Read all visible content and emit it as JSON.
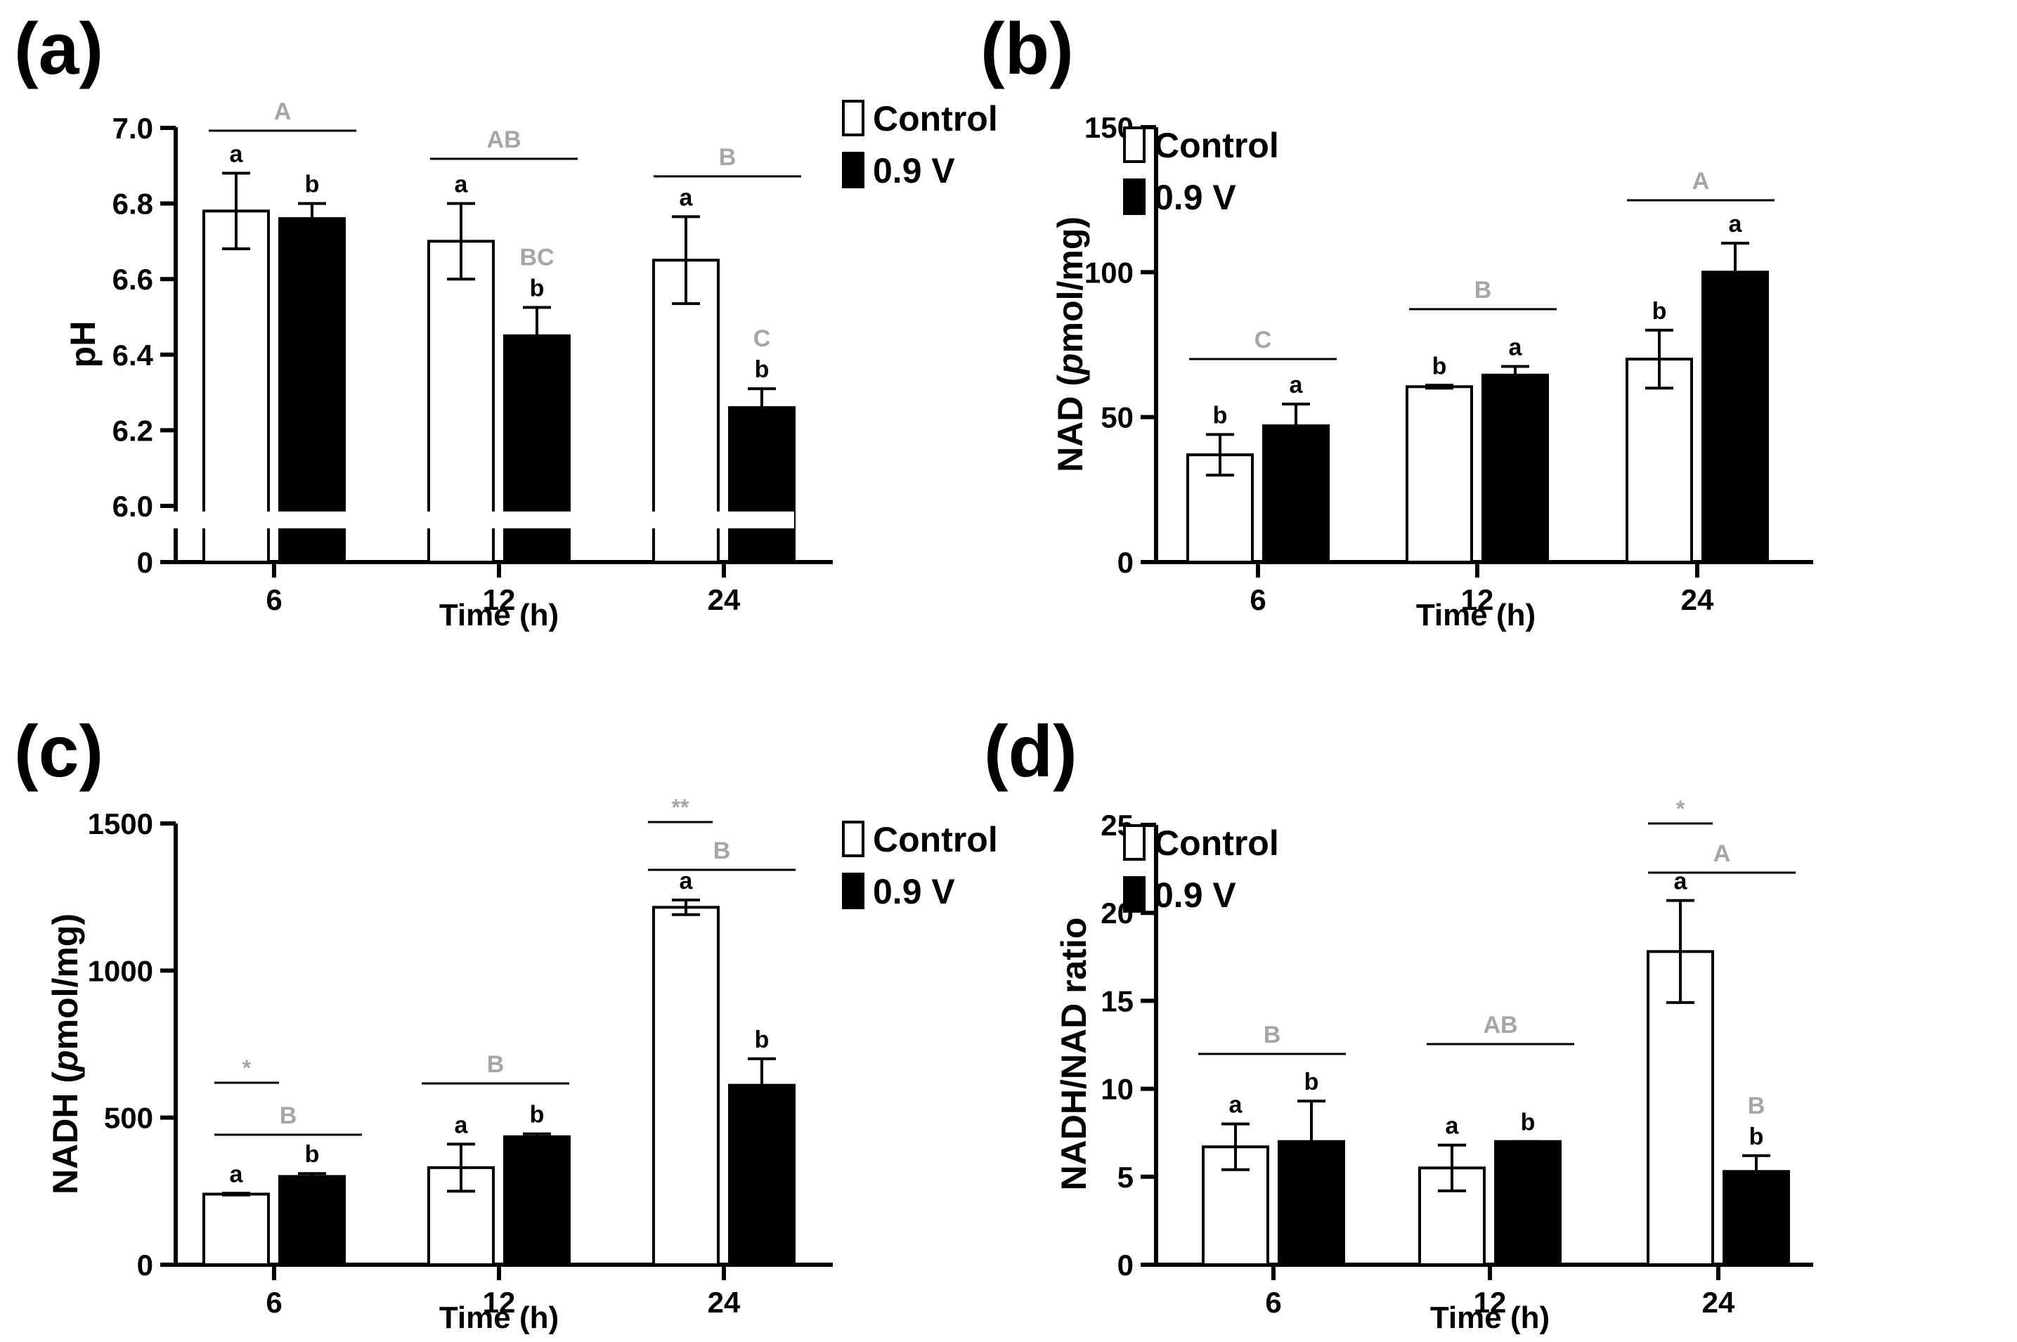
{
  "figure": {
    "panels": [
      {
        "panel_label": "(a)",
        "legend": {
          "items": [
            "Control",
            "0.9 V"
          ],
          "position": "top-right"
        },
        "chart_data": {
          "type": "bar",
          "xlabel": "Time (h)",
          "ylabel": "pH",
          "categories": [
            "6",
            "12",
            "24"
          ],
          "ylim": [
            6.0,
            7.0
          ],
          "yticks": [
            "7.0",
            "6.8",
            "6.6",
            "6.4",
            "6.2",
            "6.0",
            "0"
          ],
          "axis_break": true,
          "grid": false,
          "series": [
            {
              "name": "Control",
              "color": "#ffffff",
              "values": [
                6.78,
                6.7,
                6.65
              ],
              "errors": [
                0.1,
                0.1,
                0.115
              ],
              "labels": [
                "a",
                "a",
                "a"
              ]
            },
            {
              "name": "0.9 V",
              "color": "#000000",
              "values": [
                6.76,
                6.45,
                6.26
              ],
              "errors": [
                0.04,
                0.075,
                0.05
              ],
              "labels": [
                "b",
                "b",
                "b"
              ],
              "upper_labels": [
                "",
                "BC",
                "C"
              ]
            }
          ],
          "group_letters": [
            "A",
            "AB",
            "B"
          ]
        }
      },
      {
        "panel_label": "(b)",
        "legend": {
          "items": [
            "Control",
            "0.9 V"
          ],
          "position": "top-right"
        },
        "chart_data": {
          "type": "bar",
          "xlabel": "Time (h)",
          "ylabel_parts": [
            "NAD (",
            "p",
            "mol/mg)"
          ],
          "categories": [
            "6",
            "12",
            "24"
          ],
          "ylim": [
            0,
            150
          ],
          "yticks": [
            "0",
            "50",
            "100",
            "150"
          ],
          "grid": false,
          "series": [
            {
              "name": "Control",
              "color": "#ffffff",
              "values": [
                37,
                60.5,
                70
              ],
              "errors": [
                7,
                0.5,
                10
              ],
              "labels": [
                "b",
                "b",
                "b"
              ]
            },
            {
              "name": "0.9 V",
              "color": "#000000",
              "values": [
                47,
                64.5,
                100
              ],
              "errors": [
                7.5,
                3,
                10
              ],
              "labels": [
                "a",
                "a",
                "a"
              ]
            }
          ],
          "group_letters": [
            "C",
            "B",
            "A"
          ]
        }
      },
      {
        "panel_label": "(c)",
        "legend": {
          "items": [
            "Control",
            "0.9 V"
          ],
          "position": "top-right"
        },
        "chart_data": {
          "type": "bar",
          "xlabel": "Time (h)",
          "ylabel_parts": [
            "NADH (",
            "p",
            "mol/mg)"
          ],
          "categories": [
            "6",
            "12",
            "24"
          ],
          "ylim": [
            0,
            1500
          ],
          "yticks": [
            "0",
            "500",
            "1000",
            "1500"
          ],
          "grid": false,
          "series": [
            {
              "name": "Control",
              "color": "#ffffff",
              "values": [
                240,
                330,
                1215
              ],
              "errors": [
                3,
                80,
                25
              ],
              "labels": [
                "a",
                "a",
                "a"
              ]
            },
            {
              "name": "0.9 V",
              "color": "#000000",
              "values": [
                300,
                435,
                610
              ],
              "errors": [
                10,
                10,
                90
              ],
              "labels": [
                "b",
                "b",
                "b"
              ]
            }
          ],
          "group_letters": [
            "B",
            "B",
            "B"
          ],
          "significance": [
            "*",
            "",
            "**"
          ]
        }
      },
      {
        "panel_label": "(d)",
        "legend": {
          "items": [
            "Control",
            "0.9 V"
          ],
          "position": "top-right"
        },
        "chart_data": {
          "type": "bar",
          "xlabel": "Time (h)",
          "ylabel": "NADH/NAD ratio",
          "categories": [
            "6",
            "12",
            "24"
          ],
          "ylim": [
            0,
            25
          ],
          "yticks": [
            "0",
            "5",
            "10",
            "15",
            "20",
            "25"
          ],
          "grid": false,
          "series": [
            {
              "name": "Control",
              "color": "#ffffff",
              "values": [
                6.7,
                5.5,
                17.8
              ],
              "errors": [
                1.3,
                1.3,
                2.9
              ],
              "labels": [
                "a",
                "a",
                "a"
              ]
            },
            {
              "name": "0.9 V",
              "color": "#000000",
              "values": [
                7.0,
                7.0,
                5.3
              ],
              "errors": [
                2.3,
                0.0,
                0.9
              ],
              "labels": [
                "b",
                "b",
                "b"
              ],
              "upper_labels": [
                "",
                "",
                "B"
              ]
            }
          ],
          "group_letters": [
            "B",
            "AB",
            "A"
          ],
          "significance": [
            "",
            "",
            "*"
          ]
        }
      }
    ]
  }
}
